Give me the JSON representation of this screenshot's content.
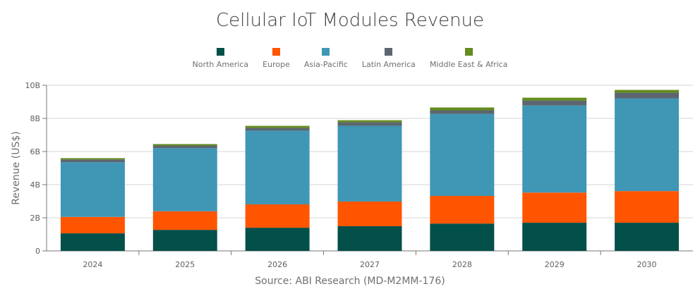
{
  "chart_data": {
    "type": "bar",
    "stacked": true,
    "title": "Cellular IoT Modules Revenue",
    "ylabel": "Revenue (US$)",
    "xlabel": "",
    "ylim": [
      0,
      10
    ],
    "yticks": [
      "0",
      "2B",
      "4B",
      "6B",
      "8B",
      "10B"
    ],
    "grid": true,
    "legend_position": "top",
    "categories": [
      "2024",
      "2025",
      "2026",
      "2027",
      "2028",
      "2029",
      "2030"
    ],
    "series": [
      {
        "name": "North America",
        "color": "#034f4a",
        "values": [
          1.06,
          1.27,
          1.4,
          1.49,
          1.65,
          1.7,
          1.7
        ]
      },
      {
        "name": "Europe",
        "color": "#ff5500",
        "values": [
          0.99,
          1.12,
          1.41,
          1.49,
          1.67,
          1.82,
          1.91
        ]
      },
      {
        "name": "Asia-Pacific",
        "color": "#3f96b5",
        "values": [
          3.3,
          3.81,
          4.45,
          4.57,
          4.95,
          5.26,
          5.6
        ]
      },
      {
        "name": "Latin America",
        "color": "#5b6670",
        "values": [
          0.17,
          0.16,
          0.17,
          0.22,
          0.22,
          0.3,
          0.34
        ]
      },
      {
        "name": "Middle East & Africa",
        "color": "#648c1e",
        "values": [
          0.08,
          0.09,
          0.12,
          0.12,
          0.17,
          0.17,
          0.17
        ]
      }
    ],
    "source": "Source: ABI Research (MD-M2MM-176)"
  }
}
